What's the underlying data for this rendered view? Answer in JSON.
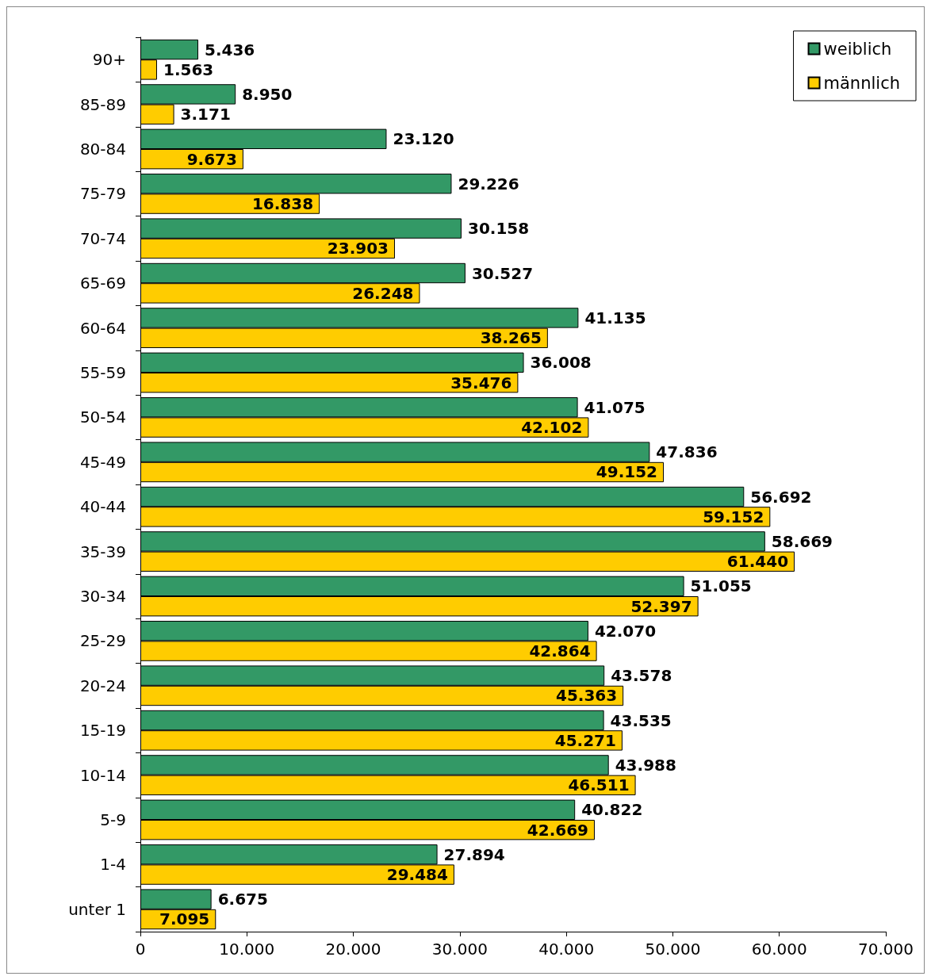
{
  "chart_data": {
    "type": "bar",
    "orientation": "horizontal",
    "categories": [
      "90+",
      "85-89",
      "80-84",
      "75-79",
      "70-74",
      "65-69",
      "60-64",
      "55-59",
      "50-54",
      "45-49",
      "40-44",
      "35-39",
      "30-34",
      "25-29",
      "20-24",
      "15-19",
      "10-14",
      "5-9",
      "1-4",
      "unter 1"
    ],
    "series": [
      {
        "name": "weiblich",
        "color": "#339966",
        "values": [
          5436,
          8950,
          23120,
          29226,
          30158,
          30527,
          41135,
          36008,
          41075,
          47836,
          56692,
          58669,
          51055,
          42070,
          43578,
          43535,
          43988,
          40822,
          27894,
          6675
        ],
        "value_labels": [
          "5.436",
          "8.950",
          "23.120",
          "29.226",
          "30.158",
          "30.527",
          "41.135",
          "36.008",
          "41.075",
          "47.836",
          "56.692",
          "58.669",
          "51.055",
          "42.070",
          "43.578",
          "43.535",
          "43.988",
          "40.822",
          "27.894",
          "6.675"
        ]
      },
      {
        "name": "männlich",
        "color": "#ffcc00",
        "values": [
          1563,
          3171,
          9673,
          16838,
          23903,
          26248,
          38265,
          35476,
          42102,
          49152,
          59152,
          61440,
          52397,
          42864,
          45363,
          45271,
          46511,
          42669,
          29484,
          7095
        ],
        "value_labels": [
          "1.563",
          "3.171",
          "9.673",
          "16.838",
          "23.903",
          "26.248",
          "38.265",
          "35.476",
          "42.102",
          "49.152",
          "59.152",
          "61.440",
          "52.397",
          "42.864",
          "45.363",
          "45.271",
          "46.511",
          "42.669",
          "29.484",
          "7.095"
        ]
      }
    ],
    "xlim": [
      0,
      70000
    ],
    "xticks": [
      0,
      {
        "value": 10000,
        "label": "10.000"
      },
      {
        "value": 20000,
        "label": "20.000"
      },
      {
        "value": 30000,
        "label": "30.000"
      },
      {
        "value": 40000,
        "label": "40.000"
      },
      {
        "value": 50000,
        "label": "50.000"
      },
      {
        "value": 60000,
        "label": "60.000"
      },
      {
        "value": 70000,
        "label": "70.000"
      }
    ],
    "grid": false,
    "legend": "top right"
  }
}
